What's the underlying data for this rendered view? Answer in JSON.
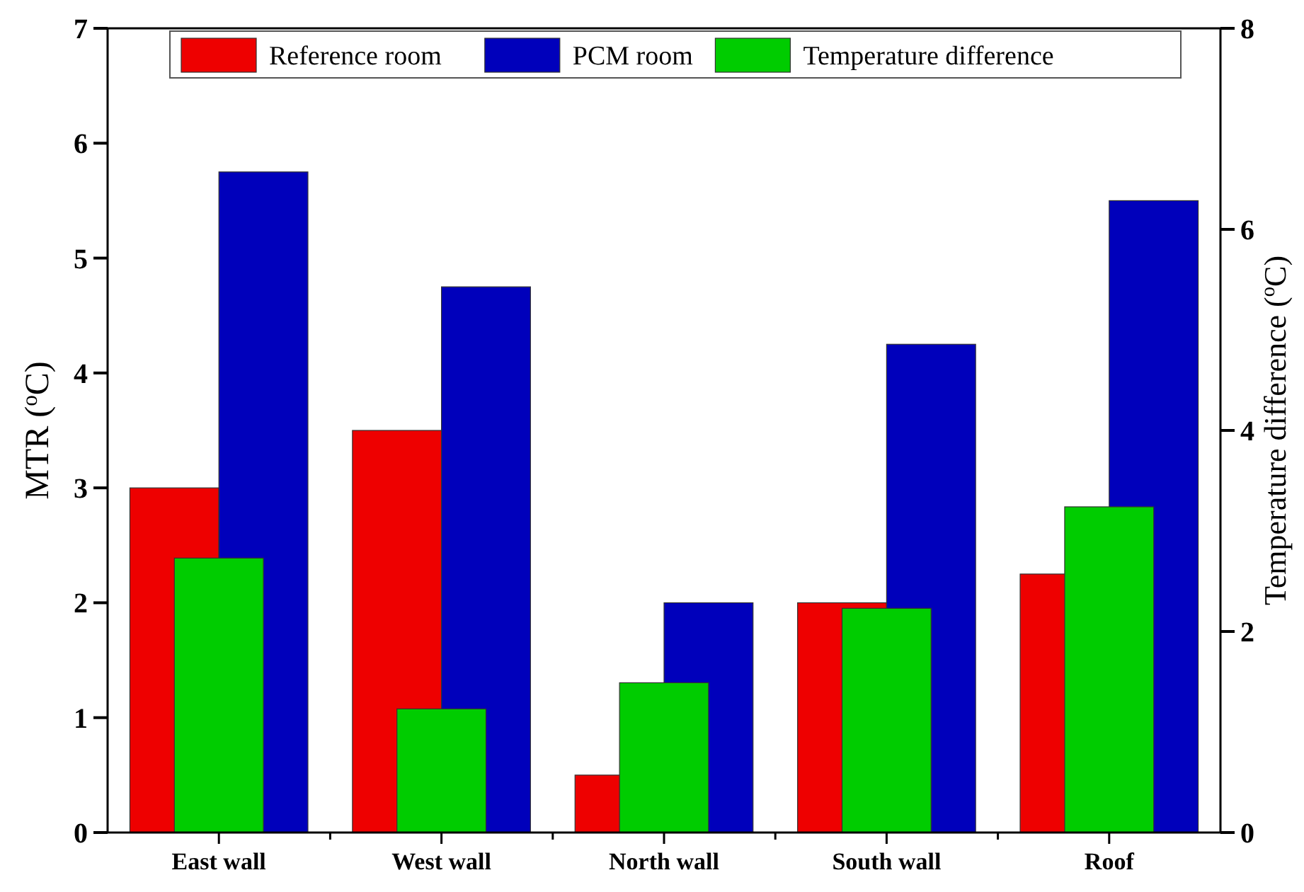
{
  "chart_data": {
    "type": "bar",
    "ylabel": "MTR ($^{o}$C)",
    "y2label": "Temperature difference ($^{o}$C)",
    "categories": [
      "East wall",
      "West wall",
      "North wall",
      "South wall",
      "Roof"
    ],
    "series": [
      {
        "name": "Reference room",
        "color": "#ee0000",
        "values": [
          3.0,
          3.5,
          0.5,
          2.0,
          2.25
        ]
      },
      {
        "name": "PCM room",
        "color": "#0000bb",
        "values": [
          5.75,
          4.75,
          2.0,
          4.25,
          5.5
        ]
      },
      {
        "name": "Temperature difference",
        "color": "#00cc00",
        "axis": "y2",
        "values": [
          2.73,
          1.23,
          1.49,
          2.23,
          3.24
        ]
      }
    ],
    "ylim": [
      0,
      7
    ],
    "yticks": [
      0,
      1,
      2,
      3,
      4,
      5,
      6,
      7
    ],
    "y2lim": [
      0,
      8
    ],
    "y2ticks": [
      0,
      2,
      4,
      6,
      8
    ],
    "legend": "top",
    "grid": false
  }
}
